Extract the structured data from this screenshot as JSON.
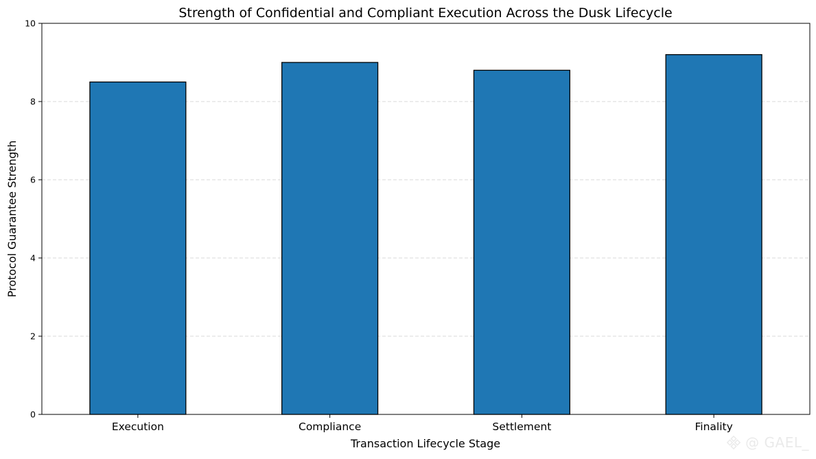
{
  "chart_data": {
    "type": "bar",
    "title": "Strength of Confidential and Compliant Execution Across the Dusk Lifecycle",
    "xlabel": "Transaction Lifecycle Stage",
    "ylabel": "Protocol Guarantee Strength",
    "categories": [
      "Execution",
      "Compliance",
      "Settlement",
      "Finality"
    ],
    "values": [
      8.5,
      9.0,
      8.8,
      9.2
    ],
    "ylim": [
      0,
      10
    ],
    "yticks": [
      0,
      2,
      4,
      6,
      8,
      10
    ],
    "grid": "y-dashed",
    "legend": "none",
    "bar_color": "#1f77b4",
    "bar_edge_color": "#000000",
    "grid_color": "#d9d9d9"
  },
  "watermark": {
    "text": "@ GAEL_",
    "icon": "binance-diamond-icon"
  }
}
